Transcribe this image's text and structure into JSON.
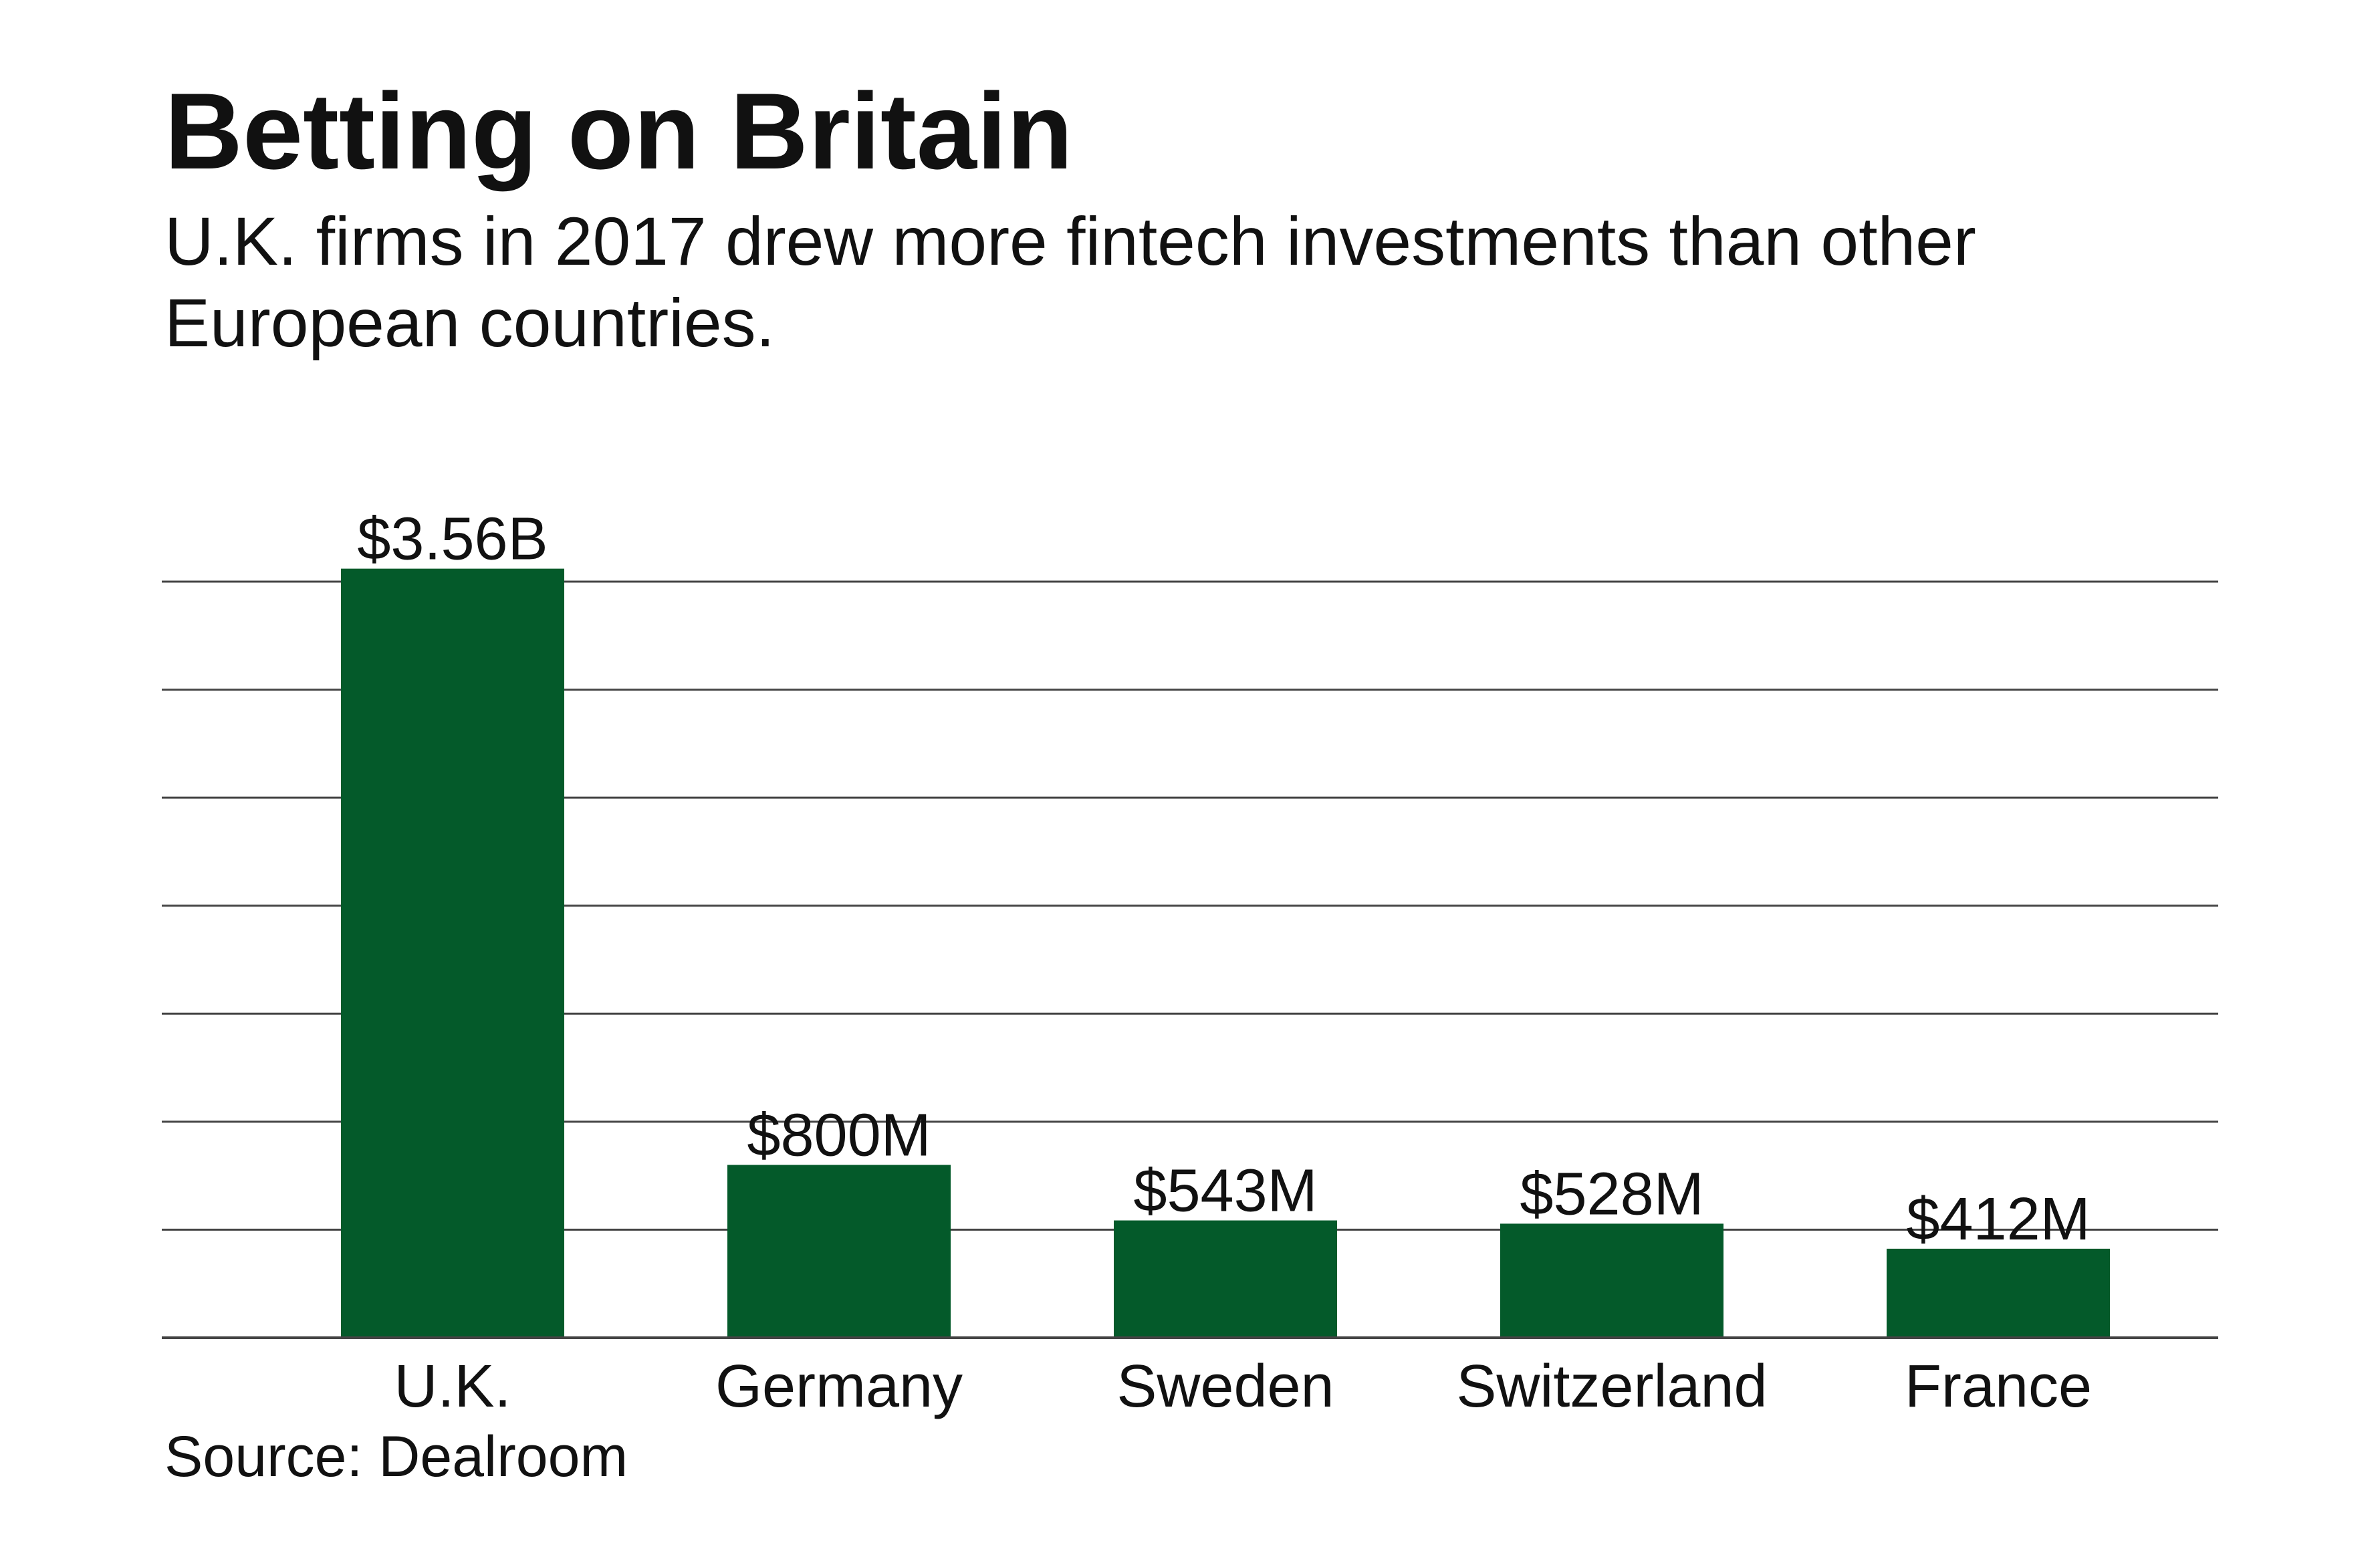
{
  "chart_data": {
    "type": "bar",
    "title": "Betting on Britain",
    "subtitle": "U.K. firms in 2017 drew more fintech investments than other European countries.",
    "categories": [
      "U.K.",
      "Germany",
      "Sweden",
      "Switzerland",
      "France"
    ],
    "values": [
      3560,
      800,
      543,
      528,
      412
    ],
    "value_unit": "million USD",
    "data_labels": [
      "$3.56B",
      "$800M",
      "$543M",
      "$528M",
      "$412M"
    ],
    "xlabel": "",
    "ylabel": "",
    "ylim": [
      0,
      3500
    ],
    "grid": true,
    "legend": "none",
    "bar_color": "#045a2a",
    "source": "Source: Dealroom"
  }
}
